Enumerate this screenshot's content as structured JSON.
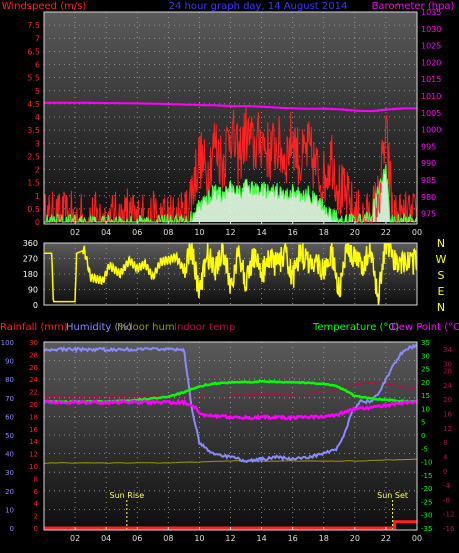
{
  "colors": {
    "background": "#000000",
    "panel_top": "#5a5a5a",
    "panel_bottom": "#0e0e0e",
    "frame": "#d8d8d8",
    "grid": "#a9a9a9",
    "windspeed": "#ff2020",
    "wind_avg": "#44ff44",
    "wind_fill": "#e6ffe6",
    "barometer": "#ff00ff",
    "direction": "#ffff00",
    "title": "#3a3aff",
    "rainfall": "#ff2020",
    "humidity": "#8a8aff",
    "indoor_hum": "#9a9a00",
    "indoor_temp": "#b01040",
    "temperature": "#00ff00",
    "dewpoint": "#ff00ff",
    "sun_marker": "#ffff66",
    "dir_label": "#ffff00"
  },
  "chart_data": [
    {
      "type": "line",
      "title": "24 hour graph day, 14 August 2014",
      "ylabel": "Windspeed (m/s)",
      "y2label": "Barometer (hpa)",
      "x_ticks": [
        "02",
        "04",
        "06",
        "08",
        "10",
        "12",
        "14",
        "16",
        "18",
        "20",
        "22",
        "00"
      ],
      "ylim": [
        0,
        8
      ],
      "y_ticks": [
        "0",
        "0.5",
        "1",
        "1.5",
        "2",
        "2.5",
        "3",
        "3.5",
        "4",
        "4.5",
        "5",
        "5.5",
        "6",
        "6.5",
        "7",
        "7.5"
      ],
      "y2lim": [
        972.5,
        1035
      ],
      "y2_ticks": [
        "975",
        "980",
        "985",
        "990",
        "995",
        "1000",
        "1005",
        "1010",
        "1015",
        "1020",
        "1025",
        "1030",
        "1035"
      ],
      "series": [
        {
          "name": "Windspeed (m/s)",
          "x": [
            0,
            5.3,
            5.31,
            5.4,
            9.0,
            9.5,
            10.0,
            10.5,
            11.0,
            11.5,
            12.0,
            12.5,
            13.0,
            13.5,
            14.0,
            14.5,
            15.0,
            15.5,
            16.0,
            16.5,
            17.0,
            17.5,
            18.0,
            18.5,
            19.0,
            19.5,
            20.0,
            20.5,
            21.0,
            21.5,
            22.0,
            22.5,
            24.0
          ],
          "values": [
            0,
            0,
            0.8,
            0,
            0,
            1.2,
            2.5,
            1.8,
            3.1,
            2.2,
            3.6,
            2.4,
            3.4,
            2.8,
            3.2,
            2.6,
            3.0,
            2.4,
            3.3,
            2.2,
            2.8,
            2.0,
            1.6,
            2.6,
            1.2,
            0.8,
            0.2,
            0,
            0,
            0.8,
            3.3,
            0,
            0
          ]
        },
        {
          "name": "Wind avg",
          "x": [
            0,
            9.3,
            9.8,
            10.5,
            11.0,
            11.5,
            12.0,
            12.5,
            13.0,
            13.5,
            14.0,
            14.5,
            15.0,
            15.5,
            16.0,
            16.5,
            17.0,
            17.5,
            18.0,
            18.5,
            19.0,
            20.5,
            21.0,
            21.5,
            22.0,
            22.3,
            24.0
          ],
          "values": [
            0,
            0,
            0.6,
            0.9,
            1.2,
            1.0,
            1.3,
            1.1,
            1.4,
            1.2,
            1.3,
            1.1,
            1.2,
            1.0,
            1.2,
            1.0,
            1.1,
            0.8,
            0.6,
            0.3,
            0.1,
            0,
            0.2,
            1.2,
            2.1,
            0,
            0
          ]
        },
        {
          "name": "Barometer (hpa)",
          "x": [
            0,
            2,
            4,
            6,
            8,
            10,
            11,
            12,
            13,
            14,
            15,
            16,
            17,
            18,
            19,
            20,
            21,
            22,
            23,
            24
          ],
          "values": [
            1008.0,
            1008.0,
            1007.9,
            1007.8,
            1007.6,
            1007.3,
            1007.2,
            1007.0,
            1007.0,
            1006.8,
            1006.5,
            1006.3,
            1006.2,
            1006.2,
            1006.0,
            1005.6,
            1005.5,
            1006.0,
            1006.3,
            1006.3
          ]
        }
      ]
    },
    {
      "type": "line",
      "ylim": [
        0,
        360
      ],
      "y_ticks": [
        "0",
        "90",
        "180",
        "270",
        "360"
      ],
      "direction_labels": [
        "N",
        "W",
        "S",
        "E",
        "N"
      ],
      "series": [
        {
          "name": "Wind direction",
          "x": [
            0,
            0.5,
            0.6,
            2.0,
            2.1,
            2.6,
            3.0,
            3.8,
            4.2,
            4.9,
            5.5,
            6.0,
            6.5,
            7.0,
            7.5,
            8.0,
            8.5,
            9.0,
            9.5,
            10.0,
            10.5,
            11.0,
            11.5,
            12.0,
            12.5,
            13.0,
            13.5,
            14.0,
            14.5,
            15.0,
            15.5,
            16.0,
            16.5,
            17.0,
            17.5,
            18.0,
            18.5,
            19.0,
            19.5,
            20.0,
            20.5,
            21.0,
            21.5,
            22.0,
            22.5,
            23.0,
            24.0
          ],
          "values": [
            300,
            300,
            20,
            20,
            300,
            320,
            160,
            140,
            230,
            180,
            260,
            210,
            240,
            160,
            250,
            260,
            280,
            200,
            340,
            60,
            300,
            200,
            330,
            110,
            290,
            130,
            300,
            180,
            270,
            230,
            300,
            150,
            310,
            240,
            260,
            200,
            300,
            80,
            320,
            260,
            240,
            300,
            50,
            360,
            250,
            250,
            250
          ]
        }
      ]
    },
    {
      "type": "line",
      "ylabel": "Rainfall (mm)",
      "y2label": "Temperature (°C)",
      "legend": [
        "Rainfall (mm)",
        "Humidity (%)",
        "Indoor hum",
        "Indoor temp",
        "Temperature (°C)",
        "Dew Point (°C)"
      ],
      "x_ticks": [
        "02",
        "04",
        "06",
        "08",
        "10",
        "12",
        "14",
        "16",
        "18",
        "20",
        "22",
        "00"
      ],
      "humidity_ticks": [
        "0",
        "10",
        "20",
        "30",
        "40",
        "50",
        "60",
        "70",
        "80",
        "90",
        "100"
      ],
      "rain_ticks": [
        "0",
        "2",
        "4",
        "6",
        "8",
        "10",
        "12",
        "14",
        "16",
        "18",
        "20",
        "22",
        "24",
        "26",
        "28",
        "30"
      ],
      "temp_ticks": [
        "-35",
        "-30",
        "-25",
        "-20",
        "-15",
        "-10",
        "-5",
        "0",
        "5",
        "10",
        "15",
        "20",
        "25",
        "30",
        "35"
      ],
      "indoor_temp_ticks": [
        "-16",
        "-12",
        "-8",
        "-4",
        "0",
        "4",
        "8",
        "12",
        "16",
        "20",
        "24",
        "28",
        "30",
        "34"
      ],
      "series": [
        {
          "name": "Humidity (%)",
          "x": [
            0,
            8.0,
            9.0,
            9.5,
            10.0,
            10.5,
            11.0,
            12.0,
            13.0,
            14.0,
            15.0,
            16.0,
            17.0,
            18.0,
            18.8,
            19.3,
            19.8,
            20.3,
            21.0,
            21.5,
            22.0,
            22.5,
            23.0,
            23.5,
            24.0
          ],
          "values": [
            96,
            96,
            96,
            65,
            46,
            42,
            40,
            38,
            36,
            37,
            38,
            37,
            38,
            40,
            42,
            50,
            62,
            68,
            68,
            72,
            80,
            88,
            94,
            97,
            98
          ]
        },
        {
          "name": "Indoor hum",
          "x": [
            0,
            4,
            8,
            12,
            16,
            20,
            24
          ],
          "values": [
            35,
            35,
            35,
            36,
            36,
            36,
            37
          ]
        },
        {
          "name": "Indoor temp",
          "x": [
            0,
            8.0,
            10.0,
            12.0,
            14.0,
            16.0,
            18.0,
            19.0,
            20.0,
            21.0,
            22.0,
            23.0,
            24.0
          ],
          "values": [
            20.8,
            20.9,
            21.0,
            21.1,
            21.3,
            21.5,
            22.0,
            22.8,
            24.0,
            24.8,
            24.3,
            23.5,
            22.8
          ]
        },
        {
          "name": "Temperature (°C)",
          "x": [
            0,
            2,
            4,
            6,
            8,
            9.0,
            9.8,
            10.5,
            11.0,
            12.0,
            13.0,
            14.0,
            15.0,
            16.0,
            17.0,
            18.0,
            18.8,
            19.5,
            20.0,
            21.0,
            22.0,
            23.0,
            24.0
          ],
          "values": [
            12.5,
            12.5,
            12.6,
            13.1,
            14.5,
            16.0,
            17.8,
            19.0,
            19.4,
            19.8,
            19.9,
            20.1,
            20.0,
            19.9,
            19.6,
            19.3,
            18.4,
            16.5,
            14.6,
            13.8,
            13.2,
            12.7,
            12.5
          ]
        },
        {
          "name": "Dew Point (°C)",
          "x": [
            0,
            8,
            9,
            9.7,
            10.2,
            11,
            12,
            13,
            14,
            15,
            16,
            17,
            18,
            18.8,
            19.5,
            20,
            21,
            22,
            23,
            24
          ],
          "values": [
            12.3,
            12.3,
            12.4,
            10.5,
            7.5,
            7.0,
            6.8,
            6.5,
            6.7,
            6.6,
            6.5,
            6.8,
            7.0,
            7.5,
            9.0,
            10.0,
            10.2,
            11.3,
            12.0,
            12.2
          ]
        },
        {
          "name": "Rainfall (mm)",
          "x": [
            0,
            22.5,
            22.55,
            24.0
          ],
          "values": [
            0,
            0,
            1.0,
            1.0
          ]
        }
      ],
      "annotations": [
        {
          "label": "Sun Rise",
          "x": 5.33
        },
        {
          "label": "Sun Set",
          "x": 22.43
        }
      ]
    }
  ],
  "labels": {
    "title": "24 hour graph day, 14 August 2014",
    "windspeed": "Windspeed (m/s)",
    "barometer": "Barometer (hpa)",
    "rainfall": "Rainfall (mm)",
    "humidity": "Humidity (%)",
    "indoor_hum": "Indoor hum",
    "indoor_temp": "Indoor temp",
    "temperature": "Temperature (°C)",
    "dewpoint": "Dew Point (°C)",
    "sunrise": "Sun Rise",
    "sunset": "Sun Set"
  }
}
